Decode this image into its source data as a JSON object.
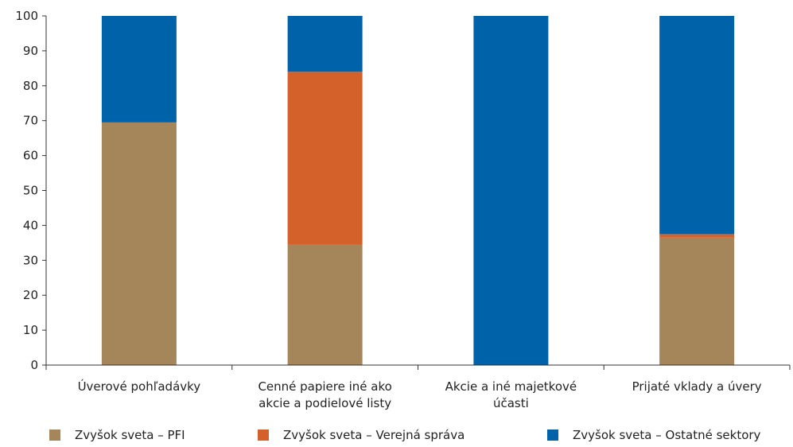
{
  "chart_data": {
    "type": "bar",
    "stacked": true,
    "categories": [
      [
        "Úverové pohľadávky"
      ],
      [
        "Cenné  papiere iné ako",
        "akcie a podielové listy"
      ],
      [
        "Akcie a iné majetkové",
        "účasti"
      ],
      [
        "Prijaté vklady a úvery"
      ]
    ],
    "series": [
      {
        "name": "Zvyšok sveta – PFI",
        "color": "#a5855a",
        "values": [
          69.5,
          34.5,
          0,
          36.5
        ]
      },
      {
        "name": "Zvyšok sveta – Verejná správa",
        "color": "#d4602a",
        "values": [
          0,
          49.5,
          0,
          1.0
        ]
      },
      {
        "name": "Zvyšok sveta – Ostatné sektory",
        "color": "#0062a8",
        "values": [
          30.5,
          16.0,
          100,
          62.5
        ]
      }
    ],
    "ylim": [
      0,
      100
    ],
    "yticks": [
      0,
      10,
      20,
      30,
      40,
      50,
      60,
      70,
      80,
      90,
      100
    ],
    "grid": false,
    "legend_position": "bottom"
  }
}
